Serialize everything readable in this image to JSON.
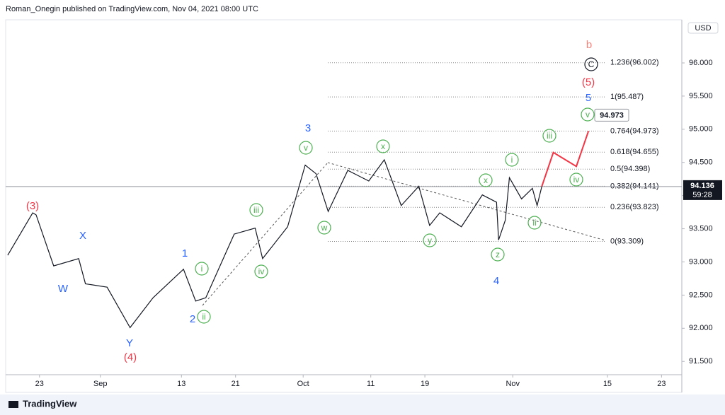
{
  "chart_data": {
    "type": "line",
    "header": "Roman_Onegin published on TradingView.com, Nov 04, 2021 08:00 UTC",
    "currency": "USD",
    "footer": "TradingView",
    "x": [
      230.3,
      234.0,
      234.5,
      237.1,
      240.8,
      241.8,
      245.0,
      248.4,
      251.8,
      256.3,
      258.1,
      259.6,
      263.8,
      266.9,
      268.0,
      271.7,
      274.3,
      275.9,
      277.7,
      280.6,
      283.7,
      286.0,
      288.5,
      291.1,
      292.7,
      294.2,
      297.4,
      300.5,
      302.6,
      302.9,
      303.9,
      304.5,
      306.3,
      307.9,
      308.6,
      309.3
    ],
    "series": [
      {
        "color": "#131722",
        "x": [
          230.3,
          234.0,
          234.5,
          237.1,
          240.8,
          241.8,
          245.0,
          248.4,
          251.8,
          256.3,
          258.1,
          259.6,
          263.8,
          266.9,
          268.0,
          271.7,
          274.3,
          275.9,
          277.7,
          280.6,
          283.7,
          286.0,
          288.5,
          291.1,
          292.7,
          294.2,
          297.4,
          300.5,
          302.6,
          302.9,
          303.9,
          304.5,
          306.3,
          307.9,
          308.6,
          309.3
        ],
        "values": [
          93.1,
          93.74,
          93.71,
          92.94,
          93.05,
          92.67,
          92.62,
          92.01,
          92.46,
          92.89,
          92.41,
          92.46,
          93.42,
          93.51,
          93.05,
          93.53,
          94.46,
          94.33,
          93.76,
          94.38,
          94.22,
          94.54,
          93.85,
          94.14,
          93.55,
          93.74,
          93.53,
          94.01,
          93.9,
          93.33,
          93.63,
          94.27,
          93.95,
          94.11,
          93.85,
          94.14
        ]
      },
      {
        "color": "#f23645",
        "x": [
          309.3,
          311.0,
          314.4,
          316.2
        ],
        "values": [
          94.14,
          94.65,
          94.44,
          94.973
        ]
      }
    ],
    "xlim": [
      230,
      330
    ],
    "xticks": [
      {
        "value": 235,
        "label": "23"
      },
      {
        "value": 244,
        "label": "Sep"
      },
      {
        "value": 256,
        "label": "13"
      },
      {
        "value": 264,
        "label": "21"
      },
      {
        "value": 274,
        "label": "Oct"
      },
      {
        "value": 284,
        "label": "11"
      },
      {
        "value": 292,
        "label": "19"
      },
      {
        "value": 305,
        "label": "Nov"
      },
      {
        "value": 319,
        "label": "15"
      },
      {
        "value": 327,
        "label": "23"
      }
    ],
    "ylim": [
      91.3,
      96.65
    ],
    "yticks": [
      {
        "value": 91.5,
        "label": "91.500"
      },
      {
        "value": 92,
        "label": "92.000"
      },
      {
        "value": 92.5,
        "label": "92.500"
      },
      {
        "value": 93,
        "label": "93.000"
      },
      {
        "value": 93.5,
        "label": "93.500"
      },
      {
        "value": 94,
        "label": "94.000"
      },
      {
        "value": 94.5,
        "label": "94.500"
      },
      {
        "value": 95,
        "label": "95.000"
      },
      {
        "value": 95.5,
        "label": "95.500"
      },
      {
        "value": 96,
        "label": "96.000"
      }
    ],
    "last_price": 94.136,
    "countdown": "59:28",
    "target": 94.973,
    "fib_levels": [
      {
        "value": 96.002,
        "label": "1.236(96.002)"
      },
      {
        "value": 95.487,
        "label": "1(95.487)"
      },
      {
        "value": 94.973,
        "label": "0.764(94.973)"
      },
      {
        "value": 94.655,
        "label": "0.618(94.655)"
      },
      {
        "value": 94.398,
        "label": "0.5(94.398)"
      },
      {
        "value": 94.141,
        "label": "0.382(94.141)"
      },
      {
        "value": 93.823,
        "label": "0.236(93.823)"
      },
      {
        "value": 93.309,
        "label": "0(93.309)"
      }
    ],
    "annotations": [
      {
        "text": "(3)",
        "color": "#f23645"
      },
      {
        "text": "X",
        "color": "#2962ff"
      },
      {
        "text": "W",
        "color": "#2962ff"
      },
      {
        "text": "Y",
        "color": "#2962ff"
      },
      {
        "text": "(4)",
        "color": "#f23645"
      },
      {
        "text": "1",
        "color": "#2962ff"
      },
      {
        "text": "2",
        "color": "#2962ff"
      },
      {
        "text": "3",
        "color": "#2962ff"
      },
      {
        "text": "4",
        "color": "#2962ff"
      },
      {
        "text": "5",
        "color": "#2962ff"
      },
      {
        "text": "(5)",
        "color": "#f23645"
      },
      {
        "text": "b",
        "color": "#f7837a"
      },
      {
        "text": "C",
        "color": "#131722",
        "circled": true
      },
      {
        "text": "i",
        "color": "#4caf50",
        "circled": true
      },
      {
        "text": "ii",
        "color": "#4caf50",
        "circled": true
      },
      {
        "text": "iii",
        "color": "#4caf50",
        "circled": true
      },
      {
        "text": "iv",
        "color": "#4caf50",
        "circled": true
      },
      {
        "text": "v",
        "color": "#4caf50",
        "circled": true
      },
      {
        "text": "w",
        "color": "#4caf50",
        "circled": true
      },
      {
        "text": "x",
        "color": "#4caf50",
        "circled": true
      },
      {
        "text": "y",
        "color": "#4caf50",
        "circled": true
      },
      {
        "text": "z",
        "color": "#4caf50",
        "circled": true
      },
      {
        "text": "x",
        "color": "#4caf50",
        "circled": true
      },
      {
        "text": "i",
        "color": "#4caf50",
        "circled": true
      },
      {
        "text": "ii",
        "color": "#4caf50",
        "circled": true
      },
      {
        "text": "iii",
        "color": "#4caf50",
        "circled": true
      },
      {
        "text": "iv",
        "color": "#4caf50",
        "circled": true
      },
      {
        "text": "v",
        "color": "#4caf50",
        "circled": true
      }
    ]
  }
}
